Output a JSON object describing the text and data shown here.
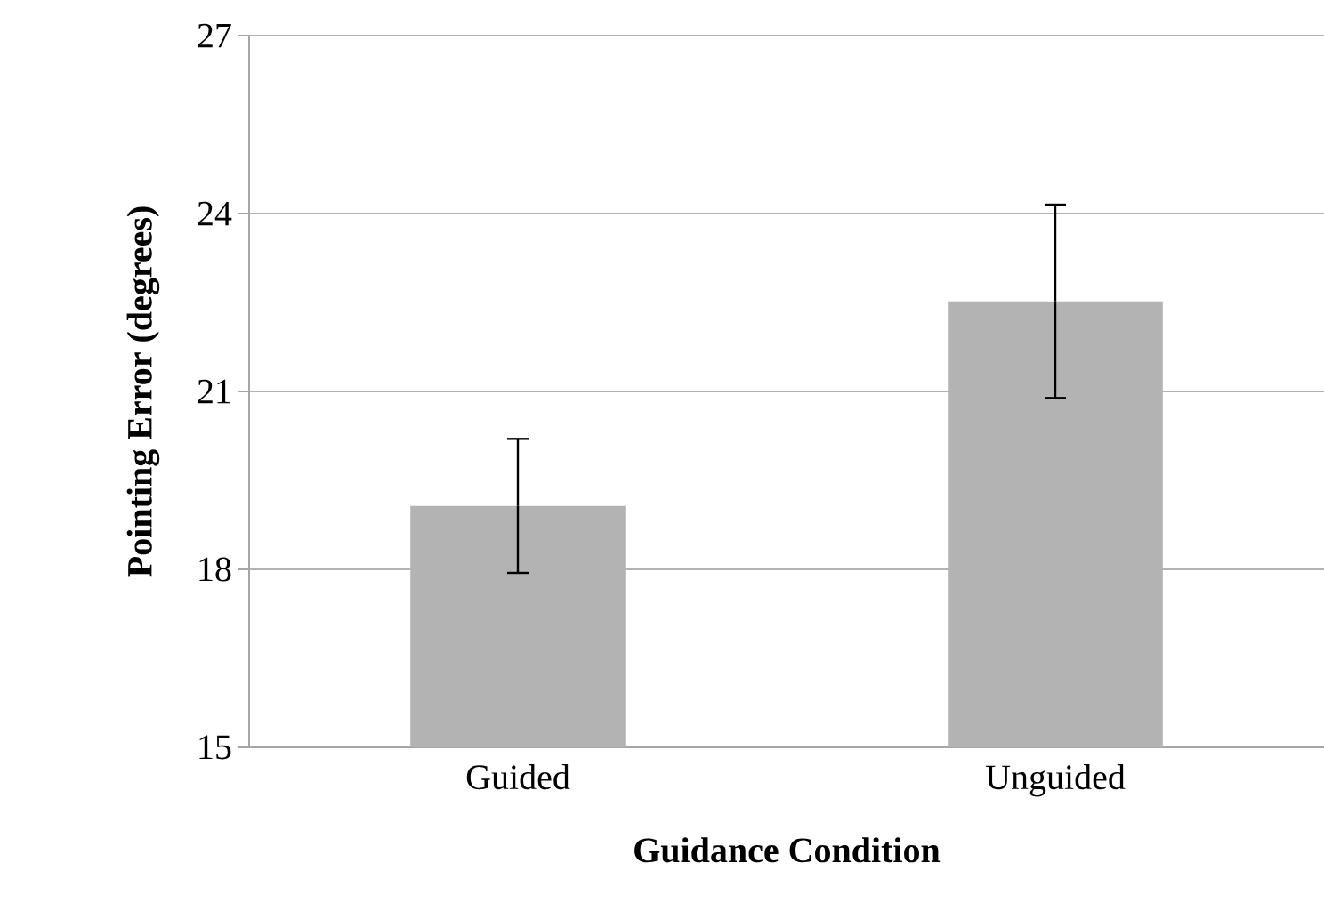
{
  "chart_data": {
    "type": "bar",
    "xlabel": "Guidance Condition",
    "ylabel": "Pointing Error (degrees)",
    "categories": [
      "Guided",
      "Unguided"
    ],
    "values": [
      19.07,
      22.52
    ],
    "errors": [
      1.13,
      1.63
    ],
    "color": "#b3b3b3",
    "ylim": [
      15,
      27
    ],
    "yticks": [
      15,
      18,
      21,
      24,
      27
    ],
    "grid": "y"
  }
}
